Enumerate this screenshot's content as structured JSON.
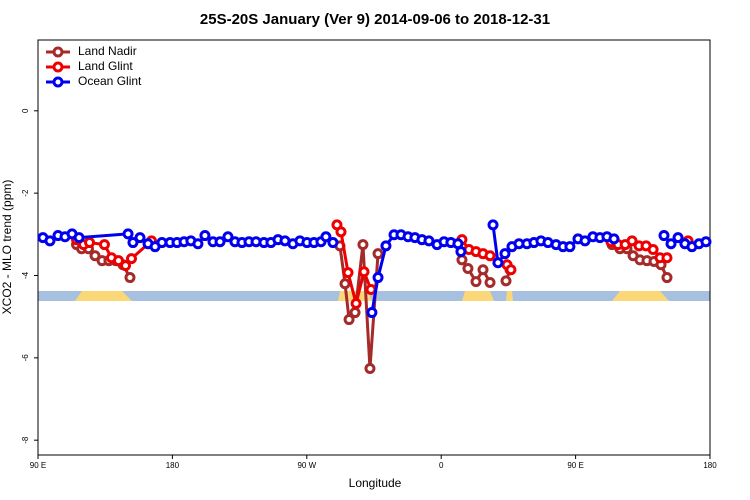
{
  "chart_data": {
    "type": "line",
    "title": "25S-20S January (Ver 9)   2014-09-06 to 2018-12-31",
    "xlabel": "Longitude",
    "ylabel": "XCO2 - MLO trend (ppm)",
    "xlim": [
      90,
      540
    ],
    "ylim": [
      -8.36,
      1.72
    ],
    "xticks": [
      {
        "value": 90,
        "label": "90 E"
      },
      {
        "value": 180,
        "label": "180"
      },
      {
        "value": 270,
        "label": "90 W"
      },
      {
        "value": 360,
        "label": "0"
      },
      {
        "value": 450,
        "label": "90 E"
      },
      {
        "value": 540,
        "label": "180"
      }
    ],
    "yticks": [
      0,
      -2,
      -4,
      -6,
      -8
    ],
    "legend": "upper left",
    "series": [
      {
        "name": "Land Nadir",
        "color": "#a52a2a",
        "x": [
          115.8,
          119.2,
          123.8,
          128.2,
          132.9,
          137.5,
          142.2,
          146.9,
          151.6,
          null,
          292.2,
          295.6,
          298.3,
          302.3,
          307.6,
          312.3,
          317.7,
          null,
          373.9,
          377.9,
          383.3,
          388.0,
          392.7,
          null,
          403.4,
          406.1,
          null,
          474.4,
          479.7,
          484.4,
          488.5,
          493.1,
          497.8,
          502.5,
          507.2,
          511.2
        ],
        "values": [
          -3.25,
          -3.35,
          -3.35,
          -3.52,
          -3.64,
          -3.64,
          -3.64,
          -3.74,
          -4.05,
          null,
          -3.28,
          -4.2,
          -5.07,
          -4.9,
          -3.25,
          -6.26,
          -3.47,
          null,
          -3.62,
          -3.83,
          -4.15,
          -3.86,
          -4.17,
          null,
          -4.13,
          -3.86,
          null,
          -3.25,
          -3.35,
          -3.35,
          -3.52,
          -3.62,
          -3.64,
          -3.66,
          -3.74,
          -4.05
        ]
      },
      {
        "name": "Land Glint",
        "color": "#ee0000",
        "x": [
          115.8,
          120.5,
          124.5,
          134.5,
          139.2,
          143.9,
          148.6,
          152.6,
          166.0,
          null,
          290.2,
          292.9,
          297.6,
          303.0,
          308.3,
          313.0,
          null,
          373.9,
          378.6,
          383.3,
          388.0,
          392.7,
          null,
          404.1,
          406.7,
          null,
          473.7,
          478.4,
          483.2,
          487.8,
          492.5,
          497.2,
          501.9,
          506.5,
          511.2,
          null,
          525.3
        ],
        "values": [
          -3.13,
          -3.25,
          -3.2,
          -3.25,
          -3.57,
          -3.64,
          -3.76,
          -3.59,
          -3.16,
          null,
          -2.77,
          -2.94,
          -3.93,
          -4.68,
          -3.91,
          -4.34,
          null,
          -3.13,
          -3.37,
          -3.42,
          -3.47,
          -3.52,
          null,
          -3.74,
          -3.86,
          null,
          -3.18,
          -3.25,
          -3.25,
          -3.16,
          -3.28,
          -3.28,
          -3.37,
          -3.57,
          -3.57,
          null,
          -3.16
        ]
      },
      {
        "name": "Ocean Glint",
        "color": "#0000ee",
        "x": [
          93.3,
          98.0,
          103.4,
          108.1,
          112.8,
          117.5,
          150.3,
          153.6,
          158.3,
          163.7,
          168.4,
          173.0,
          178.4,
          183.1,
          187.8,
          192.4,
          197.1,
          201.8,
          207.2,
          211.9,
          217.2,
          221.9,
          226.6,
          231.3,
          236.0,
          241.3,
          246.0,
          250.7,
          255.4,
          260.7,
          265.4,
          270.1,
          274.8,
          279.5,
          282.8,
          287.5,
          null,
          313.6,
          317.7,
          323.0,
          328.4,
          333.1,
          337.8,
          342.4,
          347.1,
          351.8,
          357.2,
          361.9,
          366.5,
          371.2,
          373.2,
          null,
          394.7,
          398.0,
          402.7,
          407.4,
          412.1,
          417.4,
          422.1,
          426.8,
          431.5,
          436.9,
          441.6,
          446.2,
          451.6,
          456.3,
          461.6,
          466.3,
          471.0,
          475.7,
          null,
          509.2,
          513.9,
          518.6,
          523.2,
          527.9,
          532.6,
          537.3
        ],
        "values": [
          -3.08,
          -3.16,
          -3.03,
          -3.06,
          -2.99,
          -3.08,
          -2.99,
          -3.2,
          -3.08,
          -3.23,
          -3.3,
          -3.2,
          -3.2,
          -3.2,
          -3.18,
          -3.16,
          -3.23,
          -3.03,
          -3.18,
          -3.18,
          -3.06,
          -3.18,
          -3.2,
          -3.18,
          -3.18,
          -3.2,
          -3.2,
          -3.13,
          -3.16,
          -3.23,
          -3.16,
          -3.2,
          -3.2,
          -3.18,
          -3.06,
          -3.2,
          null,
          -4.9,
          -4.05,
          -3.28,
          -3.01,
          -3.01,
          -3.06,
          -3.08,
          -3.13,
          -3.16,
          -3.25,
          -3.18,
          -3.2,
          -3.23,
          -3.42,
          null,
          -2.77,
          -3.69,
          -3.47,
          -3.3,
          -3.23,
          -3.23,
          -3.2,
          -3.16,
          -3.2,
          -3.25,
          -3.3,
          -3.3,
          -3.11,
          -3.16,
          -3.06,
          -3.08,
          -3.06,
          -3.11,
          null,
          -3.03,
          -3.23,
          -3.08,
          -3.23,
          -3.3,
          -3.23,
          -3.18
        ]
      }
    ]
  }
}
